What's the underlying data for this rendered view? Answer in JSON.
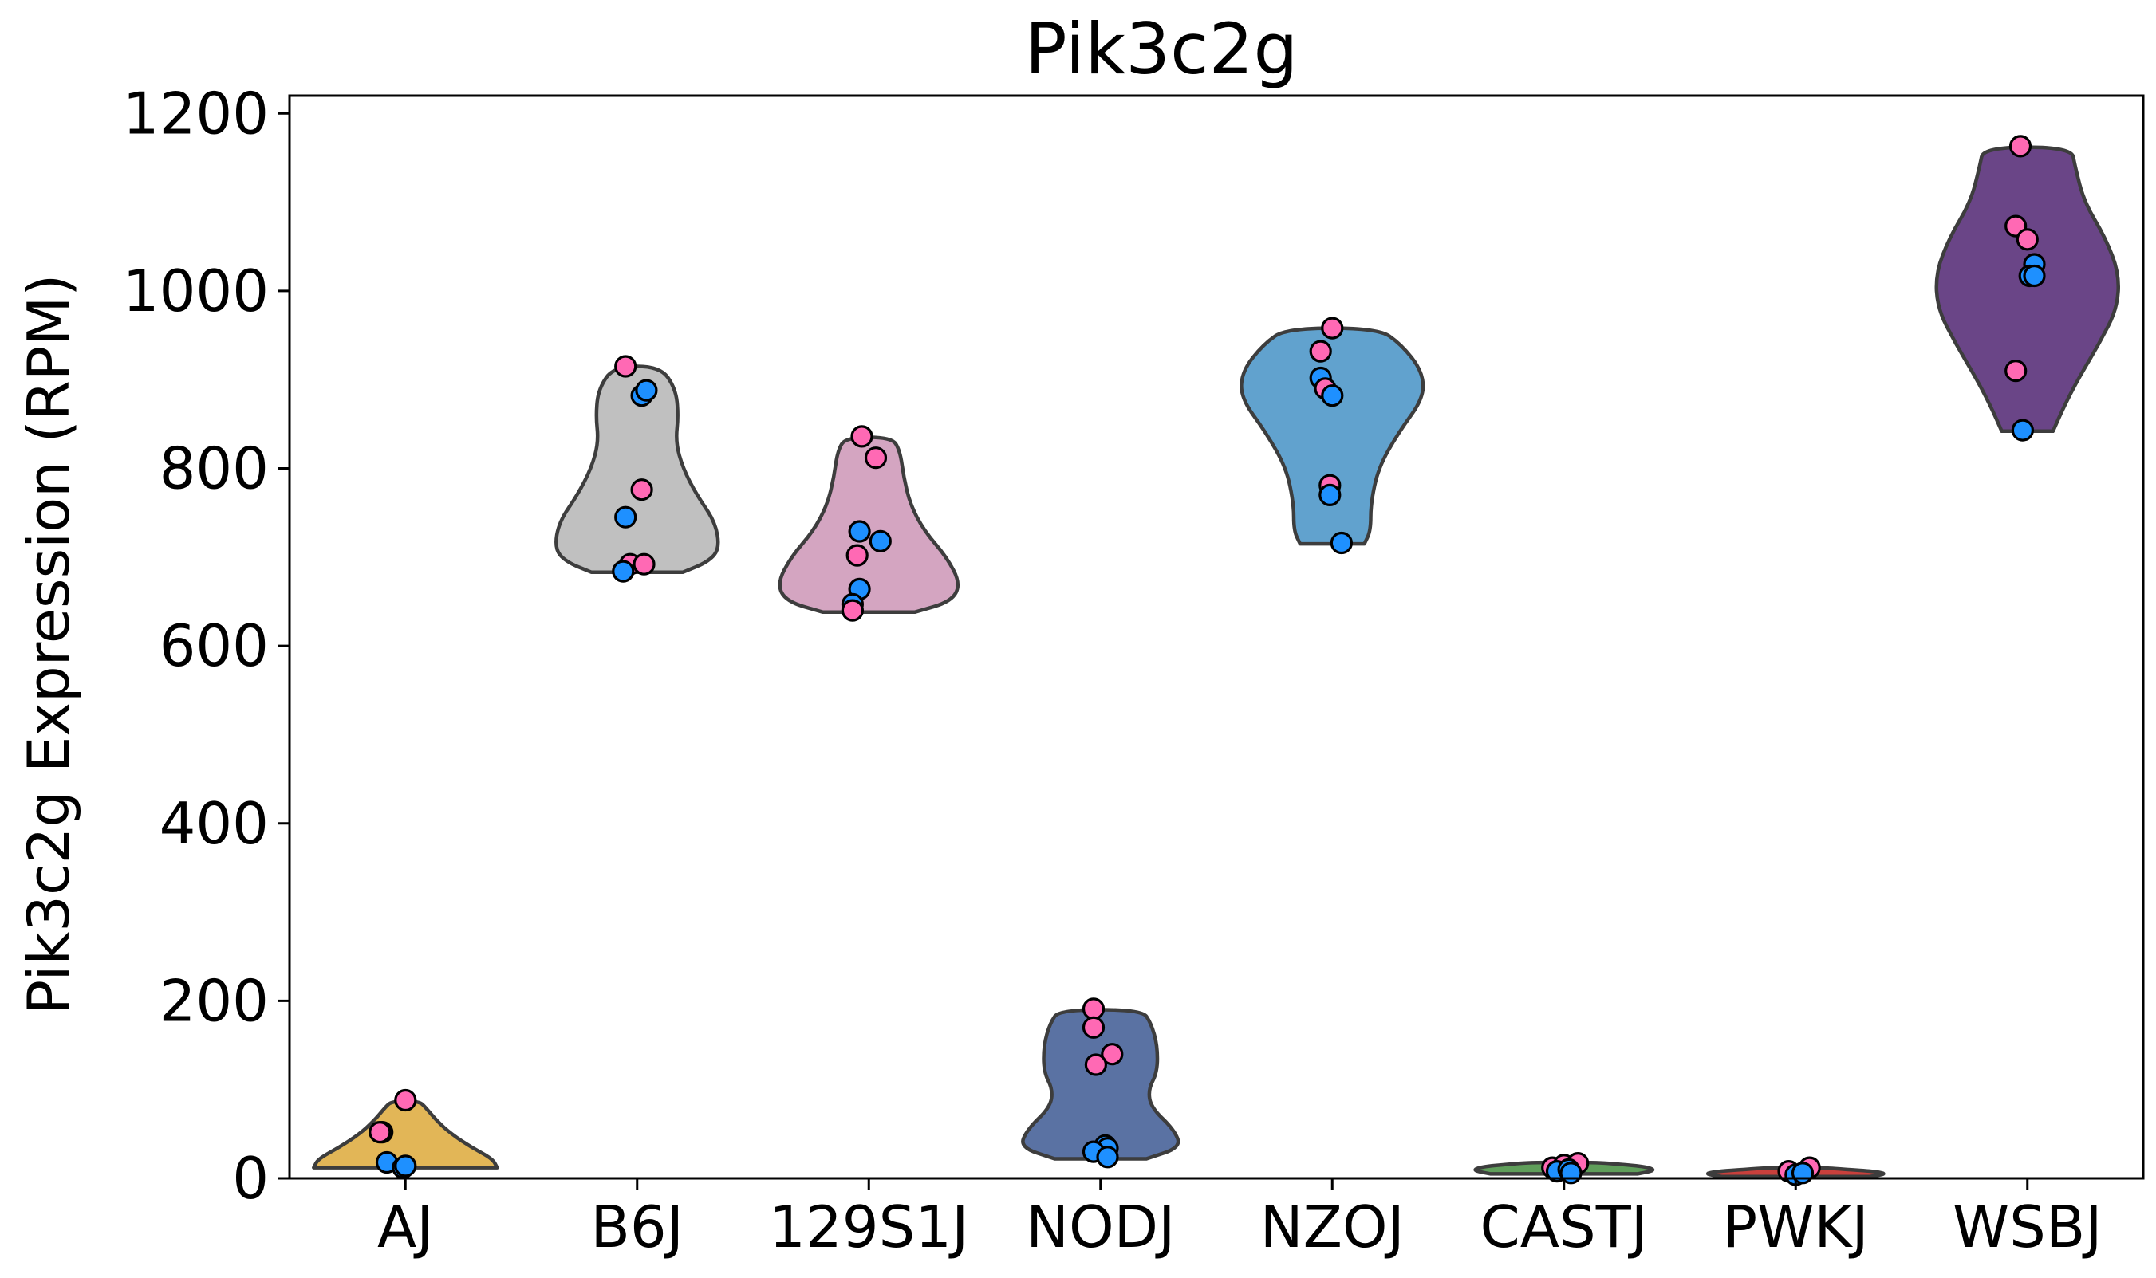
{
  "chart_data": {
    "type": "violin",
    "title": "Pik3c2g",
    "xlabel": "",
    "ylabel": "Pik3c2g Expression (RPM)",
    "ylim": [
      0,
      1200
    ],
    "yticks": [
      0,
      200,
      400,
      600,
      800,
      1000,
      1200
    ],
    "grid": false,
    "legend": "none",
    "categories": [
      "AJ",
      "B6J",
      "129S1J",
      "NODJ",
      "NZOJ",
      "CASTJ",
      "PWKJ",
      "WSBJ"
    ],
    "colors": {
      "AJ": "#E2B657",
      "B6J": "#C0C0C0",
      "129S1J": "#D4A5C1",
      "NODJ": "#5A72A3",
      "NZOJ": "#61A2CE",
      "CASTJ": "#5F9E5A",
      "PWKJ": "#C9403C",
      "WSBJ": "#6A4587"
    },
    "point_colors": {
      "pink": "#FF69B4",
      "blue": "#1E90FF"
    },
    "violins": [
      {
        "category": "AJ",
        "min": 12,
        "max": 87,
        "profile": [
          [
            12,
            1.0
          ],
          [
            22,
            0.95
          ],
          [
            35,
            0.72
          ],
          [
            50,
            0.5
          ],
          [
            65,
            0.34
          ],
          [
            80,
            0.22
          ],
          [
            87,
            0.15
          ]
        ]
      },
      {
        "category": "B6J",
        "min": 683,
        "max": 915,
        "profile": [
          [
            683,
            0.5
          ],
          [
            695,
            0.78
          ],
          [
            710,
            0.9
          ],
          [
            740,
            0.85
          ],
          [
            770,
            0.65
          ],
          [
            800,
            0.5
          ],
          [
            830,
            0.42
          ],
          [
            860,
            0.45
          ],
          [
            890,
            0.42
          ],
          [
            915,
            0.25
          ]
        ]
      },
      {
        "category": "129S1J",
        "min": 638,
        "max": 835,
        "profile": [
          [
            638,
            0.5
          ],
          [
            650,
            0.9
          ],
          [
            670,
            1.0
          ],
          [
            700,
            0.85
          ],
          [
            730,
            0.6
          ],
          [
            760,
            0.45
          ],
          [
            790,
            0.38
          ],
          [
            820,
            0.34
          ],
          [
            835,
            0.25
          ]
        ]
      },
      {
        "category": "NODJ",
        "min": 22,
        "max": 190,
        "profile": [
          [
            22,
            0.5
          ],
          [
            35,
            0.88
          ],
          [
            55,
            0.8
          ],
          [
            80,
            0.55
          ],
          [
            100,
            0.52
          ],
          [
            120,
            0.62
          ],
          [
            150,
            0.62
          ],
          [
            175,
            0.55
          ],
          [
            190,
            0.45
          ]
        ]
      },
      {
        "category": "NZOJ",
        "min": 715,
        "max": 958,
        "profile": [
          [
            715,
            0.35
          ],
          [
            730,
            0.42
          ],
          [
            760,
            0.42
          ],
          [
            800,
            0.5
          ],
          [
            840,
            0.72
          ],
          [
            880,
            1.0
          ],
          [
            910,
            0.98
          ],
          [
            940,
            0.75
          ],
          [
            958,
            0.5
          ]
        ]
      },
      {
        "category": "CASTJ",
        "min": 5,
        "max": 18,
        "profile": [
          [
            5,
            0.8
          ],
          [
            9,
            1.0
          ],
          [
            13,
            0.9
          ],
          [
            16,
            0.6
          ],
          [
            18,
            0.35
          ]
        ]
      },
      {
        "category": "PWKJ",
        "min": 2,
        "max": 12,
        "profile": [
          [
            2,
            0.8
          ],
          [
            5,
            1.0
          ],
          [
            8,
            0.85
          ],
          [
            10,
            0.55
          ],
          [
            12,
            0.3
          ]
        ]
      },
      {
        "category": "WSBJ",
        "min": 842,
        "max": 1162,
        "profile": [
          [
            842,
            0.28
          ],
          [
            870,
            0.4
          ],
          [
            900,
            0.55
          ],
          [
            940,
            0.78
          ],
          [
            980,
            0.98
          ],
          [
            1020,
            1.0
          ],
          [
            1060,
            0.85
          ],
          [
            1100,
            0.62
          ],
          [
            1140,
            0.52
          ],
          [
            1162,
            0.48
          ]
        ]
      }
    ],
    "points": [
      {
        "category": "AJ",
        "x": 0.9,
        "y": 52,
        "color": "pink"
      },
      {
        "category": "AJ",
        "x": 1.0,
        "y": 88,
        "color": "pink"
      },
      {
        "category": "AJ",
        "x": 0.92,
        "y": 18,
        "color": "blue"
      },
      {
        "category": "AJ",
        "x": 0.99,
        "y": 12,
        "color": "blue"
      },
      {
        "category": "AJ",
        "x": 1.0,
        "y": 14,
        "color": "blue"
      },
      {
        "category": "AJ",
        "x": 0.89,
        "y": 52,
        "color": "pink"
      },
      {
        "category": "B6J",
        "x": 1.95,
        "y": 915,
        "color": "pink"
      },
      {
        "category": "B6J",
        "x": 2.02,
        "y": 882,
        "color": "blue"
      },
      {
        "category": "B6J",
        "x": 2.04,
        "y": 888,
        "color": "blue"
      },
      {
        "category": "B6J",
        "x": 2.02,
        "y": 776,
        "color": "pink"
      },
      {
        "category": "B6J",
        "x": 1.95,
        "y": 745,
        "color": "blue"
      },
      {
        "category": "B6J",
        "x": 1.97,
        "y": 692,
        "color": "pink"
      },
      {
        "category": "B6J",
        "x": 2.03,
        "y": 692,
        "color": "pink"
      },
      {
        "category": "B6J",
        "x": 1.94,
        "y": 684,
        "color": "blue"
      },
      {
        "category": "129S1J",
        "x": 2.97,
        "y": 836,
        "color": "pink"
      },
      {
        "category": "129S1J",
        "x": 3.03,
        "y": 812,
        "color": "pink"
      },
      {
        "category": "129S1J",
        "x": 2.96,
        "y": 729,
        "color": "blue"
      },
      {
        "category": "129S1J",
        "x": 3.05,
        "y": 718,
        "color": "blue"
      },
      {
        "category": "129S1J",
        "x": 2.95,
        "y": 702,
        "color": "pink"
      },
      {
        "category": "129S1J",
        "x": 2.96,
        "y": 664,
        "color": "blue"
      },
      {
        "category": "129S1J",
        "x": 2.93,
        "y": 647,
        "color": "blue"
      },
      {
        "category": "129S1J",
        "x": 2.93,
        "y": 640,
        "color": "pink"
      },
      {
        "category": "NODJ",
        "x": 3.97,
        "y": 191,
        "color": "pink"
      },
      {
        "category": "NODJ",
        "x": 3.97,
        "y": 170,
        "color": "pink"
      },
      {
        "category": "NODJ",
        "x": 4.05,
        "y": 140,
        "color": "pink"
      },
      {
        "category": "NODJ",
        "x": 3.98,
        "y": 128,
        "color": "pink"
      },
      {
        "category": "NODJ",
        "x": 4.02,
        "y": 37,
        "color": "blue"
      },
      {
        "category": "NODJ",
        "x": 4.03,
        "y": 34,
        "color": "blue"
      },
      {
        "category": "NODJ",
        "x": 3.97,
        "y": 30,
        "color": "blue"
      },
      {
        "category": "NODJ",
        "x": 4.03,
        "y": 24,
        "color": "blue"
      },
      {
        "category": "NZOJ",
        "x": 5.0,
        "y": 958,
        "color": "pink"
      },
      {
        "category": "NZOJ",
        "x": 4.95,
        "y": 932,
        "color": "pink"
      },
      {
        "category": "NZOJ",
        "x": 4.95,
        "y": 902,
        "color": "blue"
      },
      {
        "category": "NZOJ",
        "x": 4.97,
        "y": 890,
        "color": "pink"
      },
      {
        "category": "NZOJ",
        "x": 5.0,
        "y": 882,
        "color": "blue"
      },
      {
        "category": "NZOJ",
        "x": 4.99,
        "y": 781,
        "color": "pink"
      },
      {
        "category": "NZOJ",
        "x": 4.99,
        "y": 770,
        "color": "blue"
      },
      {
        "category": "NZOJ",
        "x": 5.04,
        "y": 716,
        "color": "blue"
      },
      {
        "category": "CASTJ",
        "x": 5.95,
        "y": 12,
        "color": "pink"
      },
      {
        "category": "CASTJ",
        "x": 6.0,
        "y": 15,
        "color": "pink"
      },
      {
        "category": "CASTJ",
        "x": 6.06,
        "y": 17,
        "color": "pink"
      },
      {
        "category": "CASTJ",
        "x": 5.97,
        "y": 8,
        "color": "blue"
      },
      {
        "category": "CASTJ",
        "x": 6.02,
        "y": 10,
        "color": "blue"
      },
      {
        "category": "CASTJ",
        "x": 6.03,
        "y": 6,
        "color": "blue"
      },
      {
        "category": "PWKJ",
        "x": 6.97,
        "y": 8,
        "color": "pink"
      },
      {
        "category": "PWKJ",
        "x": 7.06,
        "y": 12,
        "color": "pink"
      },
      {
        "category": "PWKJ",
        "x": 7.0,
        "y": 4,
        "color": "blue"
      },
      {
        "category": "PWKJ",
        "x": 7.03,
        "y": 6,
        "color": "blue"
      },
      {
        "category": "WSBJ",
        "x": 7.97,
        "y": 1163,
        "color": "pink"
      },
      {
        "category": "WSBJ",
        "x": 7.95,
        "y": 1073,
        "color": "pink"
      },
      {
        "category": "WSBJ",
        "x": 8.0,
        "y": 1058,
        "color": "pink"
      },
      {
        "category": "WSBJ",
        "x": 8.03,
        "y": 1030,
        "color": "blue"
      },
      {
        "category": "WSBJ",
        "x": 8.01,
        "y": 1017,
        "color": "blue"
      },
      {
        "category": "WSBJ",
        "x": 8.03,
        "y": 1017,
        "color": "blue"
      },
      {
        "category": "WSBJ",
        "x": 7.95,
        "y": 910,
        "color": "pink"
      },
      {
        "category": "WSBJ",
        "x": 7.98,
        "y": 843,
        "color": "blue"
      }
    ]
  }
}
